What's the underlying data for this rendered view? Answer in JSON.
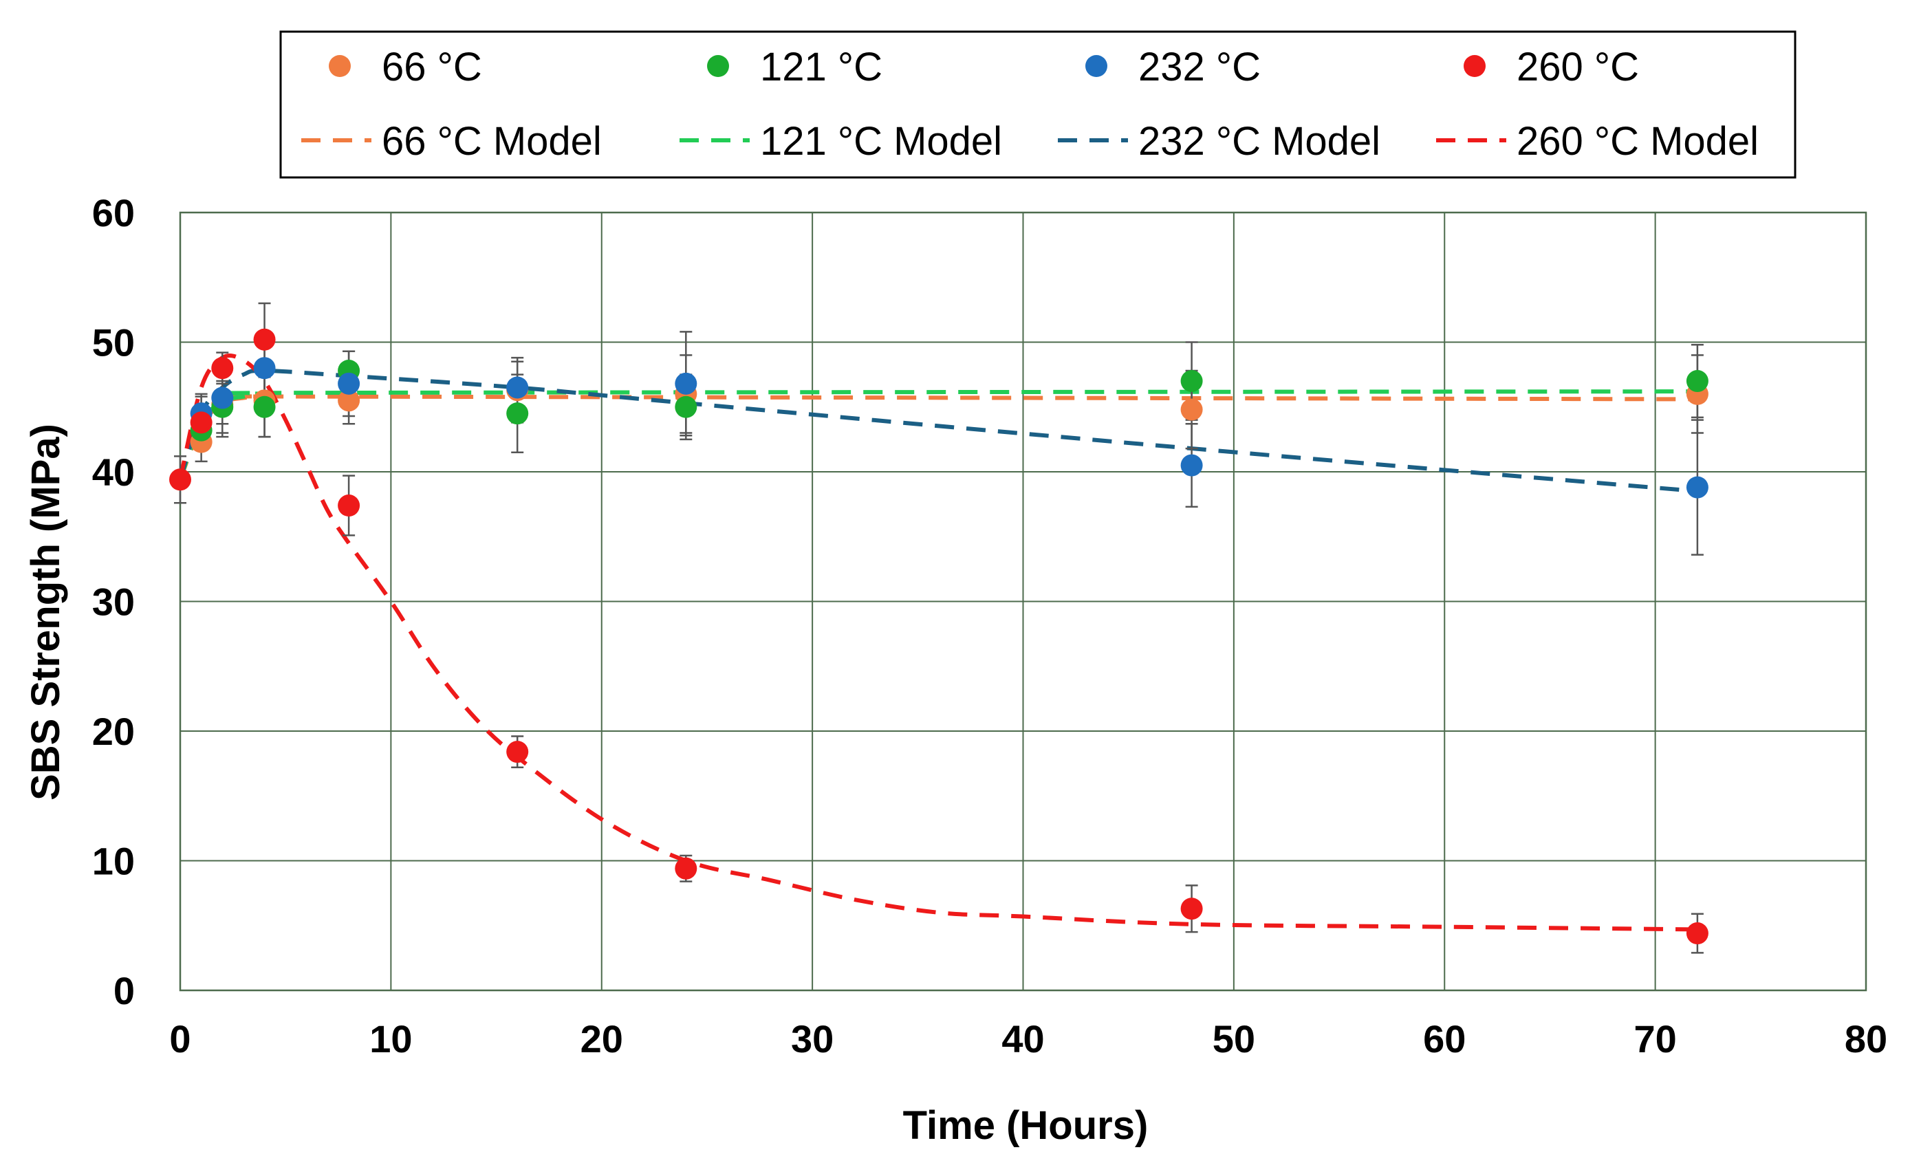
{
  "chart_data": {
    "type": "scatter",
    "title": "",
    "xlabel": "Time (Hours)",
    "ylabel": "SBS Strength (MPa)",
    "xlim": [
      0,
      80
    ],
    "ylim": [
      0,
      60
    ],
    "xticks": [
      0,
      10,
      20,
      30,
      40,
      50,
      60,
      70,
      80
    ],
    "yticks": [
      0,
      10,
      20,
      30,
      40,
      50,
      60
    ],
    "grid": true,
    "legend_position": "top",
    "series": [
      {
        "name": "66 °C",
        "color": "#f07b3f",
        "kind": "points",
        "x": [
          1,
          2,
          4,
          8,
          16,
          24,
          48,
          72
        ],
        "y": [
          42.3,
          45.2,
          45.5,
          45.5,
          46.3,
          46.0,
          44.8,
          46.0
        ],
        "err": [
          1.5,
          2.5,
          2.8,
          1.8,
          2.5,
          3.0,
          3.0,
          3.0
        ]
      },
      {
        "name": "121 °C",
        "color": "#1aac2e",
        "kind": "points",
        "x": [
          1,
          2,
          4,
          8,
          16,
          24,
          48,
          72
        ],
        "y": [
          43.2,
          45.0,
          45.0,
          47.8,
          44.5,
          45.0,
          47.0,
          47.0
        ],
        "err": [
          1.5,
          2.0,
          2.3,
          1.5,
          3.0,
          2.5,
          3.0,
          2.8
        ]
      },
      {
        "name": "232 °C",
        "color": "#1f6fbf",
        "kind": "points",
        "x": [
          1,
          2,
          4,
          8,
          16,
          24,
          48,
          72
        ],
        "y": [
          44.5,
          45.7,
          48.0,
          46.8,
          46.5,
          46.8,
          40.5,
          38.8
        ],
        "err": [
          1.5,
          2.0,
          2.0,
          2.5,
          2.0,
          4.0,
          3.2,
          5.2
        ]
      },
      {
        "name": "260 °C",
        "color": "#ee1a1a",
        "kind": "points",
        "x": [
          0,
          1,
          2,
          4,
          8,
          16,
          24,
          48,
          72
        ],
        "y": [
          39.4,
          43.8,
          48.0,
          50.2,
          37.4,
          18.4,
          9.4,
          6.3,
          4.4
        ],
        "err": [
          1.8,
          2.0,
          1.2,
          2.8,
          2.3,
          1.2,
          1.0,
          1.8,
          1.5
        ]
      },
      {
        "name": "66 °C Model",
        "color": "#f07b3f",
        "kind": "model",
        "x": [
          0,
          1,
          2,
          3,
          4,
          8,
          72
        ],
        "y": [
          39.4,
          43.5,
          45.3,
          45.7,
          45.8,
          45.8,
          45.6
        ]
      },
      {
        "name": "121 °C Model",
        "color": "#22cc55",
        "kind": "model",
        "x": [
          0,
          1,
          2,
          3,
          4,
          8,
          72
        ],
        "y": [
          39.4,
          43.8,
          45.4,
          45.8,
          46.0,
          46.1,
          46.2
        ]
      },
      {
        "name": "232 °C Model",
        "color": "#1b5f85",
        "kind": "model",
        "x": [
          0,
          1,
          2,
          3,
          4,
          8,
          16,
          24,
          48,
          72
        ],
        "y": [
          39.4,
          44.5,
          46.5,
          47.5,
          47.8,
          47.4,
          46.5,
          45.3,
          41.8,
          38.5
        ]
      },
      {
        "name": "260 °C Model",
        "color": "#ee1a1a",
        "kind": "model",
        "x": [
          0,
          1,
          2,
          3,
          4,
          5,
          6,
          7,
          8,
          10,
          12,
          14,
          16,
          20,
          24,
          28,
          32,
          36,
          40,
          48,
          60,
          72
        ],
        "y": [
          39.4,
          46.5,
          48.8,
          48.6,
          47.0,
          44.0,
          40.5,
          37.0,
          34.5,
          30.0,
          25.0,
          21.0,
          18.0,
          13.2,
          10.0,
          8.5,
          7.0,
          6.0,
          5.7,
          5.1,
          4.9,
          4.7
        ]
      }
    ]
  }
}
